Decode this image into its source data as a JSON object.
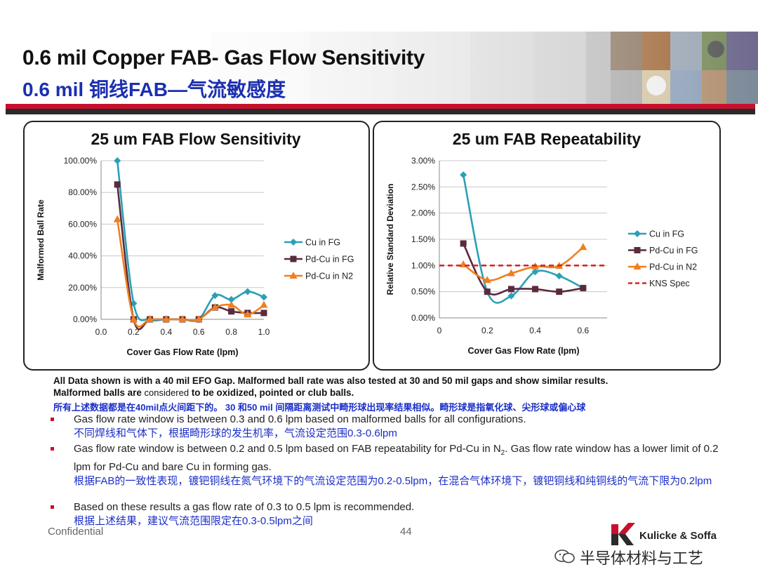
{
  "slide": {
    "title_en": "0.6 mil Copper FAB-  Gas Flow Sensitivity",
    "title_cn": "0.6 mil 铜线FAB—气流敏感度",
    "notes_line1": "All Data shown is with a 40 mil EFO Gap.  Malformed ball rate was also tested at 30 and 50 mil gaps and show similar results.",
    "notes_line2_a": "Malformed balls are ",
    "notes_line2_b": "considered",
    "notes_line2_c": " to be oxidized, pointed or club balls.",
    "notes_cn": "所有上述数据都是在40mil点火间距下的。 30 和50 mil 间隔距离测试中畸形球出现率结果相似。畸形球是指氧化球、尖形球或偏心球",
    "bullets": [
      {
        "en": "Gas flow rate window is between 0.3 and 0.6 lpm based on malformed balls for all configurations.",
        "cn": "不同焊线和气体下，根据畸形球的发生机率，气流设定范围0.3-0.6lpm"
      },
      {
        "en_a": "Gas flow rate window is between 0.2 and 0.5 lpm based on FAB repeatability for Pd-Cu in N",
        "en_sub": "2",
        "en_b": ".  Gas flow rate window has a lower limit of 0.2 lpm for Pd-Cu and bare Cu in forming gas.",
        "cn": "根据FAB的一致性表现，镀钯铜线在氮气环境下的气流设定范围为0.2-0.5lpm，在混合气体环境下，镀钯铜线和纯铜线的气流下限为0.2lpm"
      },
      {
        "en": "Based on these results a gas flow rate of 0.3 to 0.5 lpm is recommended.",
        "cn": "根据上述结果，建议气流范围限定在0.3-0.5lpm之间"
      }
    ],
    "footer_left": "Confidential",
    "page_number": "44",
    "logo_text": "Kulicke & Soffa",
    "watermark": "半导体材料与工艺"
  },
  "colors": {
    "title_blue": "#1b2fb0",
    "accent_red": "#c8102e",
    "cu_fg": "#2aa0b8",
    "pdcu_fg": "#5a2a3e",
    "pdcu_n2": "#f07f1f",
    "kns_spec": "#d62728"
  },
  "chart_data": [
    {
      "type": "line",
      "title": "25 um FAB Flow Sensitivity",
      "xlabel": "Cover Gas Flow Rate (lpm)",
      "ylabel": "Malformed Ball Rate",
      "xlim": [
        0,
        1.0
      ],
      "ylim": [
        0,
        100
      ],
      "x_ticks": [
        "0.0",
        "0.2",
        "0.4",
        "0.6",
        "0.8",
        "1.0"
      ],
      "x_tick_values": [
        0,
        0.2,
        0.4,
        0.6,
        0.8,
        1.0
      ],
      "y_ticks": [
        "0.00%",
        "20.00%",
        "40.00%",
        "60.00%",
        "80.00%",
        "100.00%"
      ],
      "y_tick_values": [
        0,
        20,
        40,
        60,
        80,
        100
      ],
      "grid": "horizontal",
      "legend": "right",
      "series": [
        {
          "name": "Cu in FG",
          "color": "#2aa0b8",
          "marker": "diamond",
          "x": [
            0.1,
            0.2,
            0.3,
            0.4,
            0.5,
            0.6,
            0.7,
            0.8,
            0.9,
            1.0
          ],
          "y": [
            100,
            10,
            0,
            0,
            0,
            0,
            15,
            12.5,
            17.5,
            14
          ]
        },
        {
          "name": "Pd-Cu in FG",
          "color": "#5a2a3e",
          "marker": "square",
          "x": [
            0.1,
            0.2,
            0.3,
            0.4,
            0.5,
            0.6,
            0.7,
            0.8,
            0.9,
            1.0
          ],
          "y": [
            85,
            0,
            0,
            0,
            0,
            0,
            7.5,
            5,
            4,
            4
          ]
        },
        {
          "name": "Pd-Cu in N2",
          "color": "#f07f1f",
          "marker": "triangle",
          "x": [
            0.1,
            0.2,
            0.3,
            0.4,
            0.5,
            0.6,
            0.7,
            0.8,
            0.9,
            1.0
          ],
          "y": [
            63,
            0,
            0,
            0,
            0,
            0,
            7.5,
            9,
            3,
            9
          ]
        }
      ]
    },
    {
      "type": "line",
      "title": "25 um FAB Repeatability",
      "xlabel": "Cover Gas Flow Rate (lpm)",
      "ylabel": "Relative Standard Deviation",
      "xlim": [
        0,
        0.7
      ],
      "ylim": [
        0,
        3.0
      ],
      "x_ticks": [
        "0",
        "0.2",
        "0.4",
        "0.6"
      ],
      "x_tick_values": [
        0,
        0.2,
        0.4,
        0.6
      ],
      "y_ticks": [
        "0.00%",
        "0.50%",
        "1.00%",
        "1.50%",
        "2.00%",
        "2.50%",
        "3.00%"
      ],
      "y_tick_values": [
        0,
        0.5,
        1.0,
        1.5,
        2.0,
        2.5,
        3.0
      ],
      "grid": "horizontal",
      "legend": "right",
      "series": [
        {
          "name": "Cu in FG",
          "color": "#2aa0b8",
          "marker": "diamond",
          "x": [
            0.1,
            0.2,
            0.3,
            0.4,
            0.5,
            0.6
          ],
          "y": [
            2.73,
            0.5,
            0.42,
            0.88,
            0.8,
            0.57
          ]
        },
        {
          "name": "Pd-Cu in FG",
          "color": "#5a2a3e",
          "marker": "square",
          "x": [
            0.1,
            0.2,
            0.3,
            0.4,
            0.5,
            0.6
          ],
          "y": [
            1.42,
            0.5,
            0.55,
            0.55,
            0.5,
            0.57
          ]
        },
        {
          "name": "Pd-Cu in N2",
          "color": "#f07f1f",
          "marker": "triangle",
          "x": [
            0.1,
            0.2,
            0.3,
            0.4,
            0.5,
            0.6
          ],
          "y": [
            1.02,
            0.72,
            0.85,
            0.98,
            0.99,
            1.35
          ]
        },
        {
          "name": "KNS Spec",
          "color": "#d62728",
          "marker": "none",
          "dashed": true,
          "x": [
            0.0,
            0.7
          ],
          "y": [
            1.0,
            1.0
          ]
        }
      ]
    }
  ]
}
